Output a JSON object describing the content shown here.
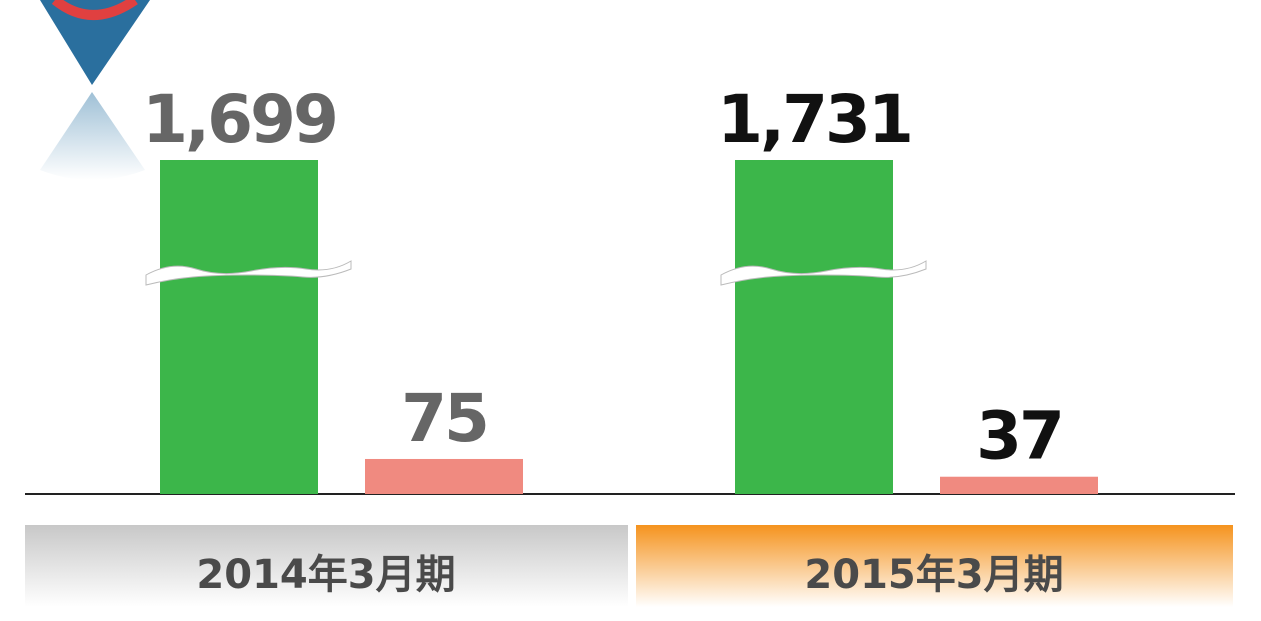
{
  "chart_data": {
    "type": "bar",
    "categories": [
      "2014年3月期",
      "2015年3月期"
    ],
    "series": [
      {
        "color": "#3cb64a",
        "values": [
          1699,
          1731
        ],
        "value_labels": [
          "1,699",
          "1,731"
        ]
      },
      {
        "color": "#f08a80",
        "values": [
          75,
          37
        ]
      }
    ],
    "axis_break": true
  }
}
